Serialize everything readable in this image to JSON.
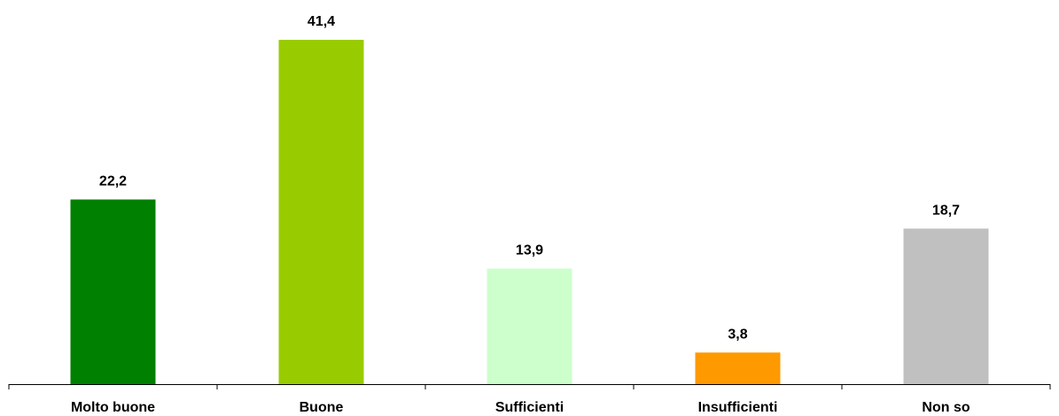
{
  "chart_data": {
    "type": "bar",
    "categories": [
      "Molto buone",
      "Buone",
      "Sufficienti",
      "Insufficienti",
      "Non so"
    ],
    "values": [
      22.2,
      41.4,
      13.9,
      3.8,
      18.7
    ],
    "value_labels": [
      "22,2",
      "41,4",
      "13,9",
      "3,8",
      "18,7"
    ],
    "colors": [
      "#008000",
      "#99cc00",
      "#ccffcc",
      "#ff9900",
      "#c0c0c0"
    ]
  }
}
